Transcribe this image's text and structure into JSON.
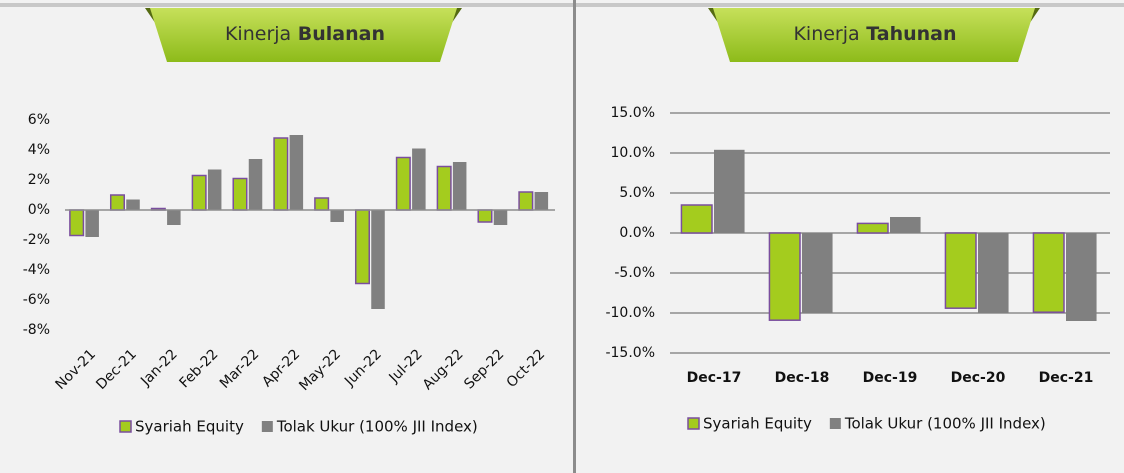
{
  "chart_data": [
    {
      "type": "bar",
      "title": "Kinerja Bulanan",
      "categories": [
        "Nov-21",
        "Dec-21",
        "Jan-22",
        "Feb-22",
        "Mar-22",
        "Apr-22",
        "May-22",
        "Jun-22",
        "Jul-22",
        "Aug-22",
        "Sep-22",
        "Oct-22"
      ],
      "series": [
        {
          "name": "Syariah Equity",
          "color": "#a4cc1e",
          "values": [
            -1.7,
            1.0,
            0.1,
            2.3,
            2.1,
            4.8,
            0.8,
            -4.9,
            3.5,
            2.9,
            -0.8,
            1.2
          ]
        },
        {
          "name": "Tolak Ukur (100% JII Index)",
          "color": "#808080",
          "values": [
            -1.8,
            0.7,
            -1.0,
            2.7,
            3.4,
            5.0,
            -0.8,
            -6.6,
            4.1,
            3.2,
            -1.0,
            1.2
          ]
        }
      ],
      "ylim": [
        -8,
        6
      ],
      "yticks": [
        {
          "value": -8,
          "label": "-8%"
        },
        {
          "value": -6,
          "label": "-6%"
        },
        {
          "value": -4,
          "label": "-4%"
        },
        {
          "value": -2,
          "label": "-2%"
        },
        {
          "value": 0,
          "label": "0%"
        },
        {
          "value": 2,
          "label": "2%"
        },
        {
          "value": 4,
          "label": "4%"
        },
        {
          "value": 6,
          "label": "6%"
        }
      ],
      "grid": false,
      "legend": "bottom"
    },
    {
      "type": "bar",
      "title": "Kinerja Tahunan",
      "categories": [
        "Dec-17",
        "Dec-18",
        "Dec-19",
        "Dec-20",
        "Dec-21"
      ],
      "series": [
        {
          "name": "Syariah Equity",
          "color": "#a4cc1e",
          "values": [
            3.5,
            -10.9,
            1.2,
            -9.4,
            -9.9
          ]
        },
        {
          "name": "Tolak Ukur (100% JII Index)",
          "color": "#808080",
          "values": [
            10.4,
            -10.0,
            2.0,
            -10.0,
            -11.0
          ]
        }
      ],
      "ylim": [
        -15,
        15
      ],
      "yticks": [
        {
          "value": -15,
          "label": "-15.0%"
        },
        {
          "value": -10,
          "label": "-10.0%"
        },
        {
          "value": -5,
          "label": "-5.0%"
        },
        {
          "value": 0,
          "label": "0.0%"
        },
        {
          "value": 5,
          "label": "5.0%"
        },
        {
          "value": 10,
          "label": "10.0%"
        },
        {
          "value": 15,
          "label": "15.0%"
        }
      ],
      "grid": true,
      "legend": "bottom"
    }
  ]
}
